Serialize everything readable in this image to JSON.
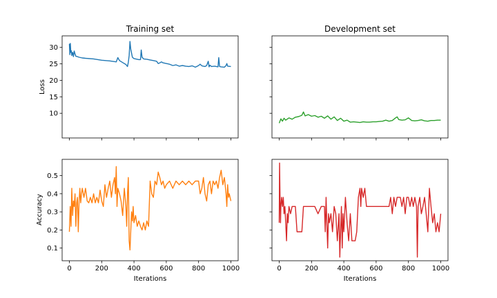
{
  "chart_data": [
    {
      "type": "line",
      "title": "Training set",
      "xlabel": "",
      "ylabel": "Loss",
      "xlim": [
        -45,
        1045
      ],
      "ylim": [
        2.5,
        33.5
      ],
      "xticks": [
        0,
        200,
        400,
        600,
        800,
        1000
      ],
      "xtick_labels": [],
      "yticks": [
        10,
        15,
        20,
        25,
        30
      ],
      "ytick_labels": [
        "10",
        "15",
        "20",
        "25",
        "30"
      ],
      "grid": false,
      "color": "#1f77b4",
      "series": [
        {
          "x": [
            0,
            3,
            6,
            9,
            12,
            15,
            20,
            25,
            30,
            35,
            40,
            50,
            60,
            80,
            100,
            150,
            200,
            250,
            290,
            300,
            310,
            330,
            350,
            360,
            365,
            370,
            375,
            380,
            390,
            400,
            420,
            430,
            440,
            445,
            450,
            460,
            480,
            500,
            520,
            540,
            550,
            560,
            570,
            580,
            600,
            620,
            640,
            660,
            680,
            700,
            720,
            740,
            760,
            780,
            800,
            810,
            820,
            840,
            850,
            860,
            865,
            870,
            880,
            900,
            920,
            925,
            930,
            940,
            960,
            970,
            975,
            980,
            1000
          ],
          "y": [
            31.1,
            27.8,
            31.2,
            28.5,
            29.0,
            27.5,
            28.5,
            27.2,
            28.9,
            28.0,
            27.3,
            27.2,
            27.0,
            26.8,
            26.7,
            26.5,
            26.1,
            25.9,
            25.6,
            26.9,
            26.0,
            25.4,
            24.8,
            24.2,
            25.5,
            27.5,
            31.8,
            29.5,
            27.0,
            26.6,
            26.4,
            26.3,
            26.3,
            29.2,
            27.0,
            26.5,
            26.4,
            26.2,
            26.0,
            25.8,
            25.1,
            25.3,
            25.6,
            25.3,
            25.1,
            24.9,
            24.5,
            24.7,
            24.3,
            24.5,
            24.3,
            24.2,
            24.4,
            24.0,
            24.5,
            24.9,
            24.4,
            24.2,
            24.5,
            25.8,
            24.1,
            24.6,
            24.2,
            24.3,
            24.1,
            26.9,
            24.2,
            24.1,
            24.0,
            24.5,
            25.1,
            24.3,
            24.2
          ]
        }
      ]
    },
    {
      "type": "line",
      "title": "Development set",
      "xlabel": "",
      "ylabel": "",
      "xlim": [
        -45,
        1045
      ],
      "ylim": [
        2.5,
        33.5
      ],
      "xticks": [
        0,
        200,
        400,
        600,
        800,
        1000
      ],
      "xtick_labels": [],
      "yticks": [
        10,
        15,
        20,
        25,
        30
      ],
      "ytick_labels": [],
      "grid": false,
      "color": "#2ca02c",
      "series": [
        {
          "x": [
            0,
            10,
            20,
            30,
            40,
            60,
            80,
            100,
            120,
            140,
            150,
            160,
            180,
            200,
            220,
            240,
            260,
            280,
            300,
            320,
            340,
            360,
            380,
            400,
            420,
            440,
            460,
            480,
            500,
            520,
            540,
            560,
            580,
            600,
            620,
            640,
            660,
            680,
            700,
            720,
            730,
            740,
            760,
            780,
            800,
            820,
            840,
            860,
            880,
            900,
            920,
            940,
            960,
            980,
            1000
          ],
          "y": [
            7.0,
            8.3,
            7.6,
            8.5,
            7.9,
            8.6,
            8.2,
            8.8,
            9.0,
            9.4,
            10.4,
            9.2,
            9.6,
            9.1,
            9.3,
            8.8,
            9.1,
            8.5,
            9.2,
            8.2,
            8.9,
            7.8,
            8.5,
            7.6,
            7.9,
            7.3,
            7.4,
            7.3,
            7.2,
            7.4,
            7.3,
            7.3,
            7.4,
            7.4,
            7.5,
            7.6,
            7.9,
            7.6,
            7.8,
            8.6,
            8.9,
            8.1,
            7.9,
            8.0,
            8.6,
            7.8,
            7.7,
            7.8,
            8.0,
            7.7,
            7.6,
            7.8,
            7.8,
            7.9,
            7.9
          ]
        }
      ]
    },
    {
      "type": "line",
      "title": "",
      "xlabel": "Iterations",
      "ylabel": "Accuracy",
      "xlim": [
        -45,
        1045
      ],
      "ylim": [
        0.03,
        0.59
      ],
      "xticks": [
        0,
        200,
        400,
        600,
        800,
        1000
      ],
      "xtick_labels": [
        "0",
        "200",
        "400",
        "600",
        "800",
        "1000"
      ],
      "yticks": [
        0.1,
        0.2,
        0.3,
        0.4,
        0.5
      ],
      "ytick_labels": [
        "0.1",
        "0.2",
        "0.3",
        "0.4",
        "0.5"
      ],
      "grid": false,
      "color": "#ff7f0e",
      "series": [
        {
          "x": [
            0,
            5,
            10,
            15,
            20,
            25,
            30,
            35,
            40,
            45,
            50,
            55,
            60,
            65,
            70,
            75,
            80,
            90,
            100,
            110,
            120,
            130,
            140,
            150,
            160,
            170,
            180,
            190,
            200,
            210,
            220,
            230,
            240,
            250,
            260,
            270,
            280,
            285,
            290,
            295,
            300,
            310,
            320,
            330,
            340,
            350,
            355,
            360,
            365,
            370,
            375,
            380,
            385,
            390,
            395,
            400,
            410,
            420,
            430,
            440,
            450,
            460,
            470,
            480,
            490,
            500,
            510,
            520,
            530,
            540,
            550,
            560,
            570,
            580,
            590,
            600,
            620,
            640,
            660,
            680,
            700,
            720,
            740,
            760,
            780,
            800,
            810,
            820,
            830,
            840,
            850,
            860,
            870,
            880,
            890,
            900,
            910,
            920,
            930,
            940,
            950,
            960,
            970,
            975,
            980,
            985,
            990,
            1000
          ],
          "y": [
            0.19,
            0.33,
            0.22,
            0.43,
            0.28,
            0.36,
            0.33,
            0.4,
            0.22,
            0.35,
            0.38,
            0.19,
            0.36,
            0.43,
            0.35,
            0.4,
            0.43,
            0.38,
            0.43,
            0.36,
            0.35,
            0.38,
            0.35,
            0.4,
            0.35,
            0.38,
            0.35,
            0.42,
            0.36,
            0.33,
            0.45,
            0.38,
            0.43,
            0.47,
            0.38,
            0.45,
            0.49,
            0.4,
            0.55,
            0.33,
            0.43,
            0.4,
            0.36,
            0.28,
            0.43,
            0.33,
            0.22,
            0.4,
            0.49,
            0.14,
            0.09,
            0.19,
            0.3,
            0.25,
            0.33,
            0.24,
            0.28,
            0.22,
            0.25,
            0.22,
            0.2,
            0.24,
            0.2,
            0.25,
            0.22,
            0.47,
            0.4,
            0.38,
            0.47,
            0.45,
            0.52,
            0.49,
            0.45,
            0.47,
            0.43,
            0.45,
            0.47,
            0.43,
            0.47,
            0.45,
            0.47,
            0.45,
            0.47,
            0.45,
            0.47,
            0.47,
            0.4,
            0.43,
            0.49,
            0.4,
            0.36,
            0.45,
            0.47,
            0.4,
            0.47,
            0.45,
            0.47,
            0.43,
            0.49,
            0.53,
            0.45,
            0.49,
            0.4,
            0.33,
            0.45,
            0.38,
            0.4,
            0.36
          ]
        }
      ]
    },
    {
      "type": "line",
      "title": "",
      "xlabel": "Iterations",
      "ylabel": "",
      "xlim": [
        -45,
        1045
      ],
      "ylim": [
        0.03,
        0.59
      ],
      "xticks": [
        0,
        200,
        400,
        600,
        800,
        1000
      ],
      "xtick_labels": [
        "0",
        "200",
        "400",
        "600",
        "800",
        "1000"
      ],
      "yticks": [
        0.1,
        0.2,
        0.3,
        0.4,
        0.5
      ],
      "ytick_labels": [],
      "grid": false,
      "color": "#d62728",
      "series": [
        {
          "x": [
            0,
            2,
            5,
            8,
            10,
            15,
            20,
            25,
            30,
            35,
            40,
            45,
            50,
            55,
            60,
            70,
            80,
            90,
            100,
            110,
            120,
            130,
            140,
            150,
            160,
            180,
            200,
            220,
            240,
            260,
            280,
            285,
            290,
            295,
            300,
            305,
            310,
            320,
            330,
            340,
            350,
            360,
            370,
            375,
            380,
            385,
            390,
            395,
            400,
            410,
            420,
            430,
            440,
            450,
            460,
            470,
            480,
            490,
            500,
            505,
            510,
            520,
            530,
            540,
            550,
            560,
            570,
            580,
            590,
            600,
            620,
            640,
            660,
            680,
            690,
            700,
            710,
            720,
            730,
            740,
            750,
            760,
            770,
            780,
            790,
            800,
            810,
            820,
            830,
            840,
            850,
            855,
            860,
            870,
            880,
            890,
            900,
            910,
            920,
            930,
            940,
            950,
            960,
            970,
            980,
            990,
            1000
          ],
          "y": [
            0.24,
            0.57,
            0.38,
            0.24,
            0.33,
            0.38,
            0.33,
            0.38,
            0.29,
            0.33,
            0.24,
            0.14,
            0.29,
            0.24,
            0.33,
            0.29,
            0.33,
            0.33,
            0.33,
            0.19,
            0.19,
            0.19,
            0.19,
            0.33,
            0.33,
            0.33,
            0.33,
            0.33,
            0.29,
            0.33,
            0.33,
            0.19,
            0.38,
            0.24,
            0.1,
            0.29,
            0.24,
            0.29,
            0.19,
            0.33,
            0.29,
            0.14,
            0.29,
            0.05,
            0.19,
            0.33,
            0.1,
            0.29,
            0.19,
            0.38,
            0.24,
            0.14,
            0.29,
            0.14,
            0.14,
            0.14,
            0.19,
            0.38,
            0.43,
            0.33,
            0.43,
            0.38,
            0.43,
            0.33,
            0.33,
            0.33,
            0.33,
            0.33,
            0.33,
            0.33,
            0.33,
            0.33,
            0.33,
            0.33,
            0.38,
            0.29,
            0.38,
            0.33,
            0.38,
            0.38,
            0.38,
            0.33,
            0.38,
            0.29,
            0.38,
            0.38,
            0.33,
            0.38,
            0.33,
            0.38,
            0.33,
            0.05,
            0.33,
            0.38,
            0.29,
            0.33,
            0.38,
            0.29,
            0.19,
            0.43,
            0.33,
            0.24,
            0.29,
            0.19,
            0.24,
            0.19,
            0.29
          ]
        }
      ]
    }
  ]
}
